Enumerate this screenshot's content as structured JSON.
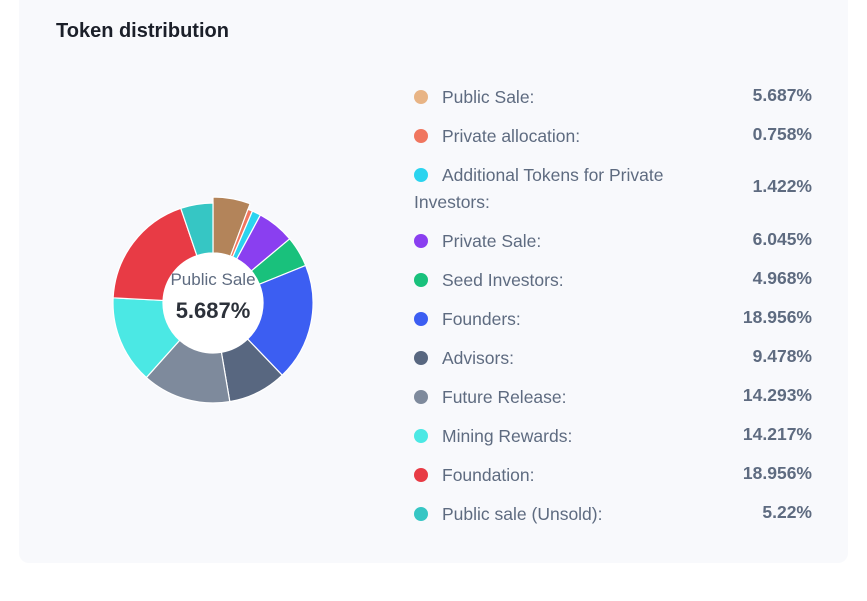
{
  "card": {
    "title": "Token distribution"
  },
  "center": {
    "label": "Public Sale",
    "value": "5.687%"
  },
  "colors": {
    "public_sale": "#e8b485",
    "private_allocation": "#f0765f",
    "additional_tokens": "#2bd4ef",
    "private_sale": "#8a3ff0",
    "seed_investors": "#19c17c",
    "founders": "#3c5ef2",
    "advisors": "#586780",
    "future_release": "#7e8a9c",
    "mining_rewards": "#4be8e4",
    "foundation": "#e83b45",
    "public_sale_unsold": "#36c6c4"
  },
  "legend": [
    {
      "label": "Public Sale:",
      "value": "5.687%"
    },
    {
      "label": "Private allocation:",
      "value": "0.758%"
    },
    {
      "label": "Additional Tokens for Private Investors:",
      "value": "1.422%"
    },
    {
      "label": "Private Sale:",
      "value": "6.045%"
    },
    {
      "label": "Seed Investors:",
      "value": "4.968%"
    },
    {
      "label": "Founders:",
      "value": "18.956%"
    },
    {
      "label": "Advisors:",
      "value": "9.478%"
    },
    {
      "label": "Future Release:",
      "value": "14.293%"
    },
    {
      "label": "Mining Rewards:",
      "value": "14.217%"
    },
    {
      "label": "Foundation:",
      "value": "18.956%"
    },
    {
      "label": "Public sale (Unsold):",
      "value": "5.22%"
    }
  ],
  "chart_data": {
    "type": "pie",
    "title": "Token distribution",
    "categories": [
      "Public Sale",
      "Private allocation",
      "Additional Tokens for Private Investors",
      "Private Sale",
      "Seed Investors",
      "Founders",
      "Advisors",
      "Future Release",
      "Mining Rewards",
      "Foundation",
      "Public sale (Unsold)"
    ],
    "values": [
      5.687,
      0.758,
      1.422,
      6.045,
      4.968,
      18.956,
      9.478,
      14.293,
      14.217,
      18.956,
      5.22
    ],
    "colors": [
      "#b3845a",
      "#f0765f",
      "#2bd4ef",
      "#8a3ff0",
      "#19c17c",
      "#3c5ef2",
      "#586780",
      "#7e8a9c",
      "#4be8e4",
      "#e83b45",
      "#36c6c4"
    ],
    "legend_colors": [
      "#e8b485",
      "#f0765f",
      "#2bd4ef",
      "#8a3ff0",
      "#19c17c",
      "#3c5ef2",
      "#586780",
      "#7e8a9c",
      "#4be8e4",
      "#e83b45",
      "#36c6c4"
    ],
    "donut": true,
    "highlighted": "Public Sale",
    "legend_position": "right"
  }
}
